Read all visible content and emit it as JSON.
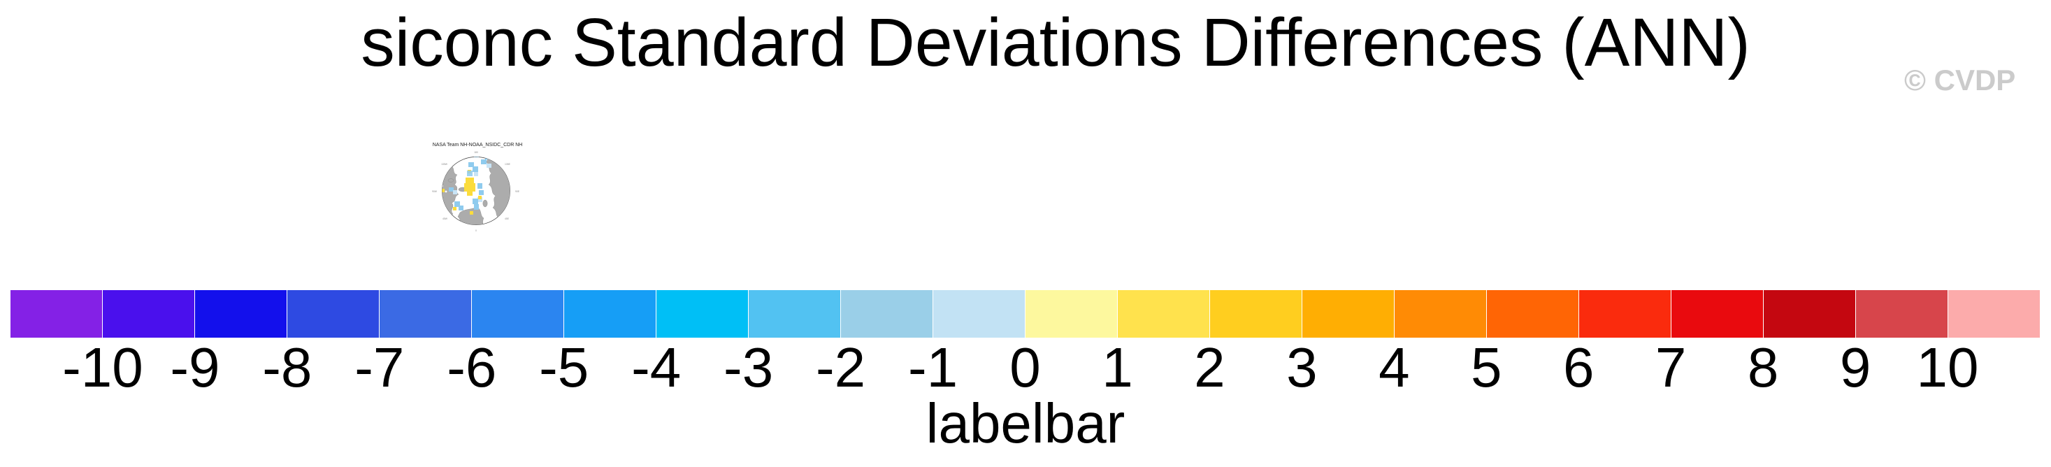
{
  "title": "siconc Standard Deviations Differences (ANN)",
  "copyright": "© CVDP",
  "map": {
    "title": "NASA Team NH-NOAA_NSIDC_CDR NH",
    "land_color": "#ACACAC",
    "ocean_color": "#FFFFFF",
    "cell_colors": {
      "yellow": "#FBDC3C",
      "light_blue": "#8FCBEE",
      "pale_blue": "#C8E4F6"
    },
    "lon_labels": [
      "180",
      "135E",
      "90E",
      "45E",
      "0",
      "45W",
      "90W",
      "135W"
    ]
  },
  "labelbar_caption": "labelbar",
  "chart_data": {
    "type": "colorbar",
    "title": "siconc Standard Deviations Differences (ANN)",
    "variable": "siconc",
    "season": "ANN",
    "orientation": "horizontal",
    "caption": "labelbar",
    "tick_labels": [
      "-10",
      "-9",
      "-8",
      "-7",
      "-6",
      "-5",
      "-4",
      "-3",
      "-2",
      "-1",
      "0",
      "1",
      "2",
      "3",
      "4",
      "5",
      "6",
      "7",
      "8",
      "9",
      "10"
    ],
    "tick_values": [
      -10,
      -9,
      -8,
      -7,
      -6,
      -5,
      -4,
      -3,
      -2,
      -1,
      0,
      1,
      2,
      3,
      4,
      5,
      6,
      7,
      8,
      9,
      10
    ],
    "colors": [
      "#8421E6",
      "#4A10ED",
      "#1310EC",
      "#2E4AE2",
      "#3B6AE4",
      "#2B85F0",
      "#169EF6",
      "#00BFF6",
      "#52C2F2",
      "#9ACFE8",
      "#C2E2F4",
      "#FDF89E",
      "#FFE24D",
      "#FFCE1F",
      "#FFAE03",
      "#FF8B05",
      "#FF6505",
      "#FA2B0D",
      "#E90A0E",
      "#C40710",
      "#D7454B",
      "#FCABAB"
    ]
  }
}
